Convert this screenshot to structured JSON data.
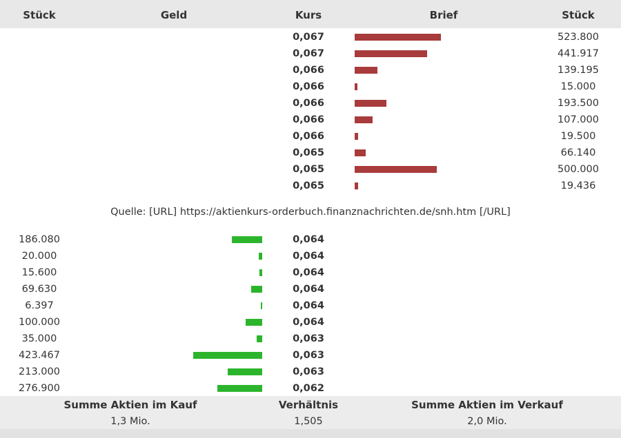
{
  "header": {
    "left_qty": "Stück",
    "bid": "Geld",
    "price": "Kurs",
    "ask": "Brief",
    "right_qty": "Stück"
  },
  "colors": {
    "ask_bar": "#a83b3b",
    "bid_bar": "#2cb52c",
    "header_bg": "#e8e8e8"
  },
  "ask_orders": [
    {
      "price": "0,067",
      "qty": "523.800",
      "amount": 523800
    },
    {
      "price": "0,067",
      "qty": "441.917",
      "amount": 441917
    },
    {
      "price": "0,066",
      "qty": "139.195",
      "amount": 139195
    },
    {
      "price": "0,066",
      "qty": "15.000",
      "amount": 15000
    },
    {
      "price": "0,066",
      "qty": "193.500",
      "amount": 193500
    },
    {
      "price": "0,066",
      "qty": "107.000",
      "amount": 107000
    },
    {
      "price": "0,066",
      "qty": "19.500",
      "amount": 19500
    },
    {
      "price": "0,065",
      "qty": "66.140",
      "amount": 66140
    },
    {
      "price": "0,065",
      "qty": "500.000",
      "amount": 500000
    },
    {
      "price": "0,065",
      "qty": "19.436",
      "amount": 19436
    }
  ],
  "source_text": "Quelle: [URL] https://aktienkurs-orderbuch.finanznachrichten.de/snh.htm [/URL]",
  "bid_orders": [
    {
      "price": "0,064",
      "qty": "186.080",
      "amount": 186080
    },
    {
      "price": "0,064",
      "qty": "20.000",
      "amount": 20000
    },
    {
      "price": "0,064",
      "qty": "15.600",
      "amount": 15600
    },
    {
      "price": "0,064",
      "qty": "69.630",
      "amount": 69630
    },
    {
      "price": "0,064",
      "qty": "6.397",
      "amount": 6397
    },
    {
      "price": "0,064",
      "qty": "100.000",
      "amount": 100000
    },
    {
      "price": "0,063",
      "qty": "35.000",
      "amount": 35000
    },
    {
      "price": "0,063",
      "qty": "423.467",
      "amount": 423467
    },
    {
      "price": "0,063",
      "qty": "213.000",
      "amount": 213000
    },
    {
      "price": "0,062",
      "qty": "276.900",
      "amount": 276900
    }
  ],
  "summary": {
    "buy_label": "Summe Aktien im Kauf",
    "buy_value": "1,3 Mio.",
    "ratio_label": "Verhältnis",
    "ratio_value": "1,505",
    "sell_label": "Summe Aktien im Verkauf",
    "sell_value": "2,0 Mio."
  }
}
